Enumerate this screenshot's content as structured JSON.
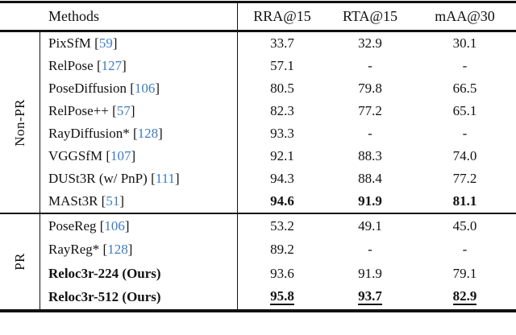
{
  "table": {
    "colors": {
      "citation_blue": "#3e7dc1",
      "text": "#111111"
    },
    "header": {
      "methods_label": "Methods",
      "columns": [
        "RRA@15",
        "RTA@15",
        "mAA@30"
      ]
    },
    "sections": [
      {
        "group": "Non-PR",
        "rows": [
          {
            "method": "PixSfM",
            "cite": "59",
            "values": [
              "33.7",
              "32.9",
              "30.1"
            ]
          },
          {
            "method": "RelPose",
            "cite": "127",
            "values": [
              "57.1",
              "-",
              "-"
            ]
          },
          {
            "method": "PoseDiffusion",
            "cite": "106",
            "values": [
              "80.5",
              "79.8",
              "66.5"
            ]
          },
          {
            "method": "RelPose++",
            "cite": "57",
            "values": [
              "82.3",
              "77.2",
              "65.1"
            ]
          },
          {
            "method": "RayDiffusion*",
            "cite": "128",
            "values": [
              "93.3",
              "-",
              "-"
            ]
          },
          {
            "method": "VGGSfM",
            "cite": "107",
            "values": [
              "92.1",
              "88.3",
              "74.0"
            ]
          },
          {
            "method": "DUSt3R (w/ PnP)",
            "cite": "111",
            "values": [
              "94.3",
              "88.4",
              "77.2"
            ]
          },
          {
            "method": "MASt3R",
            "cite": "51",
            "values": [
              "94.6",
              "91.9",
              "81.1"
            ],
            "values_bold": true
          }
        ]
      },
      {
        "group": "PR",
        "rows": [
          {
            "method": "PoseReg",
            "cite": "106",
            "values": [
              "53.2",
              "49.1",
              "45.0"
            ]
          },
          {
            "method": "RayReg*",
            "cite": "128",
            "values": [
              "89.2",
              "-",
              "-"
            ]
          },
          {
            "method": "Reloc3r-224 (Ours)",
            "cite": null,
            "method_bold": true,
            "values": [
              "93.6",
              "91.9",
              "79.1"
            ]
          },
          {
            "method": "Reloc3r-512 (Ours)",
            "cite": null,
            "method_bold": true,
            "values": [
              "95.8",
              "93.7",
              "82.9"
            ],
            "values_bold": true,
            "values_underline": true
          }
        ]
      }
    ]
  }
}
